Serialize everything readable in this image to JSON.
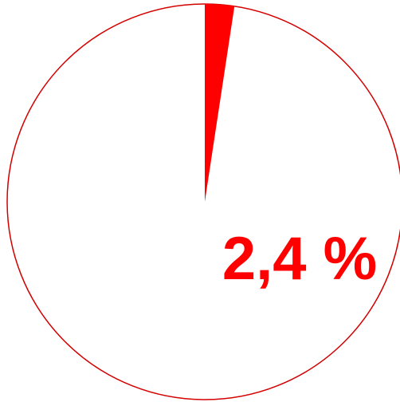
{
  "chart_data": {
    "type": "pie",
    "slices": [
      {
        "label": "",
        "value": 2.4
      }
    ],
    "total": 100,
    "start_angle_deg": 0,
    "direction": "clockwise",
    "data_label": "2,4 %",
    "colors": {
      "slice": "#ff0000",
      "outline": "#d40000",
      "label": "#ff0000",
      "background": "#ffffff"
    }
  }
}
